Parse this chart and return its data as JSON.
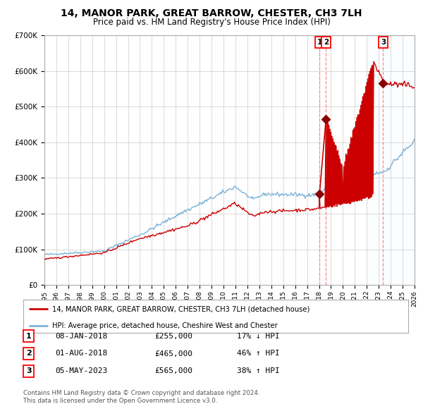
{
  "title": "14, MANOR PARK, GREAT BARROW, CHESTER, CH3 7LH",
  "subtitle": "Price paid vs. HM Land Registry's House Price Index (HPI)",
  "legend_line1": "14, MANOR PARK, GREAT BARROW, CHESTER, CH3 7LH (detached house)",
  "legend_line2": "HPI: Average price, detached house, Cheshire West and Chester",
  "footer1": "Contains HM Land Registry data © Crown copyright and database right 2024.",
  "footer2": "This data is licensed under the Open Government Licence v3.0.",
  "transactions": [
    {
      "num": 1,
      "date": "08-JAN-2018",
      "price": 255000,
      "pct": "17%",
      "dir": "↓"
    },
    {
      "num": 2,
      "date": "01-AUG-2018",
      "price": 465000,
      "pct": "46%",
      "dir": "↑"
    },
    {
      "num": 3,
      "date": "05-MAY-2023",
      "price": 565000,
      "pct": "38%",
      "dir": "↑"
    }
  ],
  "trans_years": [
    2018.04,
    2018.58,
    2023.37
  ],
  "hpi_color": "#7eb3d8",
  "price_color": "#cc0000",
  "marker_color": "#8b0000",
  "dashed_color": "#ff8888",
  "shade_color": "#ddeeff",
  "background_color": "#ffffff",
  "grid_color": "#cccccc",
  "ylim": [
    0,
    700000
  ],
  "yticks": [
    0,
    100000,
    200000,
    300000,
    400000,
    500000,
    600000,
    700000
  ],
  "ylabels": [
    "£0",
    "£100K",
    "£200K",
    "£300K",
    "£400K",
    "£500K",
    "£600K",
    "£700K"
  ],
  "year_start": 1995,
  "year_end": 2026
}
